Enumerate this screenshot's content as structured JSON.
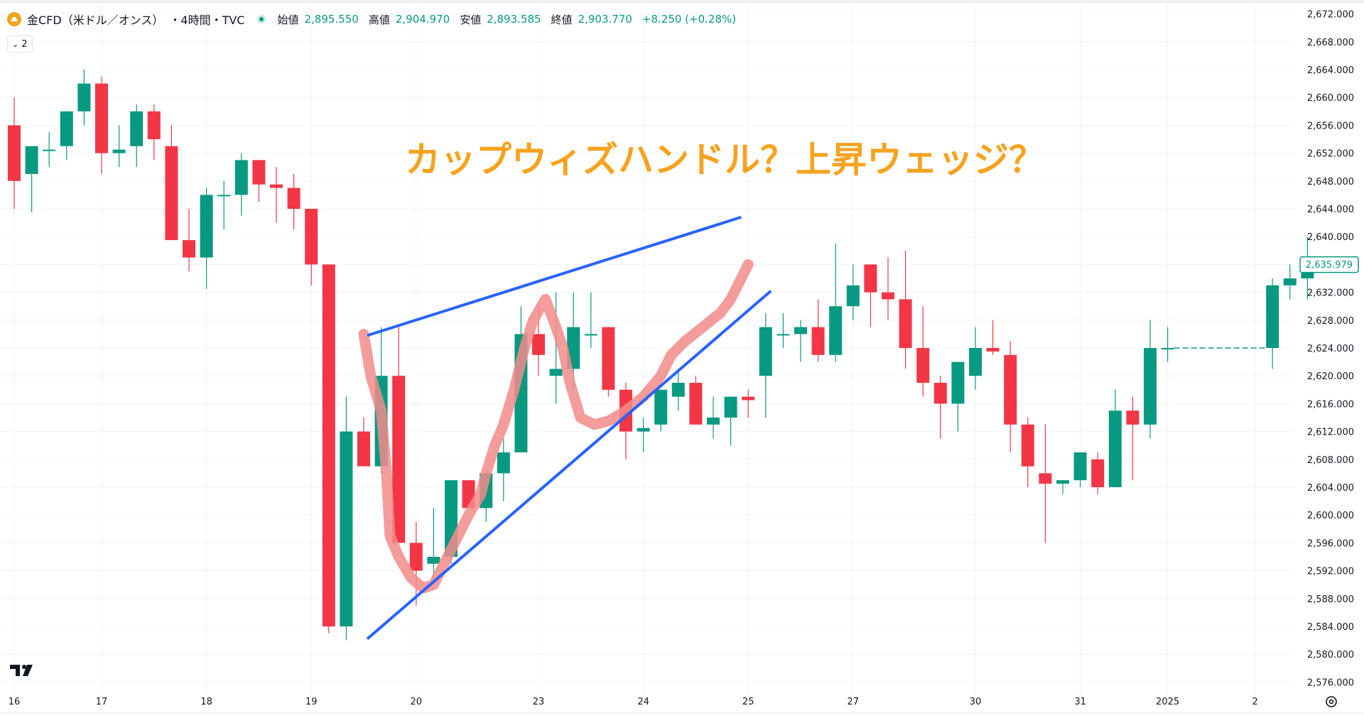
{
  "header": {
    "symbol": "金CFD（米ドル／オンス）",
    "interval": "・4時間・TVC",
    "open_label": "始値",
    "open_value": "2,895.550",
    "high_label": "高値",
    "high_value": "2,904.970",
    "low_label": "安値",
    "low_value": "2,893.585",
    "close_label": "終値",
    "close_value": "2,903.770",
    "change": "+8.250 (+0.28%)",
    "indicator_count": "2"
  },
  "annotation_text": "カップウィズハンドル？上昇ウェッジ？",
  "colors": {
    "up": "#089981",
    "down": "#f23645",
    "trendline": "#2962ff",
    "highlight": "#f28b8b",
    "annotation": "#f7a21e"
  },
  "chart_data": {
    "type": "candlestick",
    "y_ticks": [
      "2,576.000",
      "2,580.000",
      "2,584.000",
      "2,588.000",
      "2,592.000",
      "2,596.000",
      "2,600.000",
      "2,604.000",
      "2,608.000",
      "2,612.000",
      "2,616.000",
      "2,620.000",
      "2,624.000",
      "2,628.000",
      "2,632.000",
      "2,636.000",
      "2,640.000",
      "2,644.000",
      "2,648.000",
      "2,652.000",
      "2,656.000",
      "2,660.000",
      "2,664.000",
      "2,668.000",
      "2,672.000"
    ],
    "ylim": [
      2574,
      2674
    ],
    "x_ticks": [
      {
        "label": "16",
        "i": 0
      },
      {
        "label": "17",
        "i": 5
      },
      {
        "label": "18",
        "i": 11
      },
      {
        "label": "19",
        "i": 17
      },
      {
        "label": "20",
        "i": 23
      },
      {
        "label": "23",
        "i": 30
      },
      {
        "label": "24",
        "i": 36
      },
      {
        "label": "25",
        "i": 42
      },
      {
        "label": "27",
        "i": 48
      },
      {
        "label": "30",
        "i": 55
      },
      {
        "label": "31",
        "i": 61
      },
      {
        "label": "2025",
        "i": 66
      },
      {
        "label": "2",
        "i": 71
      }
    ],
    "current_price": "2,635.979",
    "current_value": 2635.979,
    "ohlc": [
      [
        2656,
        2660,
        2644,
        2648
      ],
      [
        2649,
        2653,
        2643.5,
        2653
      ],
      [
        2652.5,
        2655,
        2650,
        2652.5
      ],
      [
        2653,
        2657,
        2651,
        2658
      ],
      [
        2658,
        2664,
        2656,
        2662
      ],
      [
        2662,
        2663,
        2649,
        2652
      ],
      [
        2652,
        2656,
        2650,
        2652.5
      ],
      [
        2653,
        2659,
        2650,
        2658
      ],
      [
        2658,
        2659,
        2651,
        2654
      ],
      [
        2653,
        2656,
        2640,
        2639.5
      ],
      [
        2639.5,
        2644,
        2635,
        2637
      ],
      [
        2637,
        2647,
        2632.5,
        2646
      ],
      [
        2646,
        2648,
        2641,
        2646
      ],
      [
        2646,
        2652,
        2643,
        2651
      ],
      [
        2651,
        2651,
        2645,
        2647.5
      ],
      [
        2647.5,
        2650,
        2642,
        2647
      ],
      [
        2647,
        2649,
        2641,
        2644
      ],
      [
        2644,
        2644,
        2633,
        2636
      ],
      [
        2636,
        2636,
        2583,
        2584
      ],
      [
        2584,
        2617,
        2582,
        2612
      ],
      [
        2612,
        2614,
        2607,
        2607
      ],
      [
        2607,
        2627,
        2606,
        2620
      ],
      [
        2620,
        2627,
        2596,
        2596
      ],
      [
        2596,
        2599,
        2587,
        2592
      ],
      [
        2593,
        2601,
        2590,
        2594
      ],
      [
        2594,
        2605,
        2593,
        2605
      ],
      [
        2605,
        2605,
        2601,
        2601
      ],
      [
        2601,
        2606,
        2599,
        2606
      ],
      [
        2606,
        2611,
        2602,
        2609
      ],
      [
        2609,
        2630,
        2609,
        2626
      ],
      [
        2626,
        2630,
        2620,
        2623
      ],
      [
        2620,
        2632,
        2616,
        2621
      ],
      [
        2621,
        2632,
        2618,
        2627
      ],
      [
        2626,
        2632,
        2624,
        2626
      ],
      [
        2627,
        2627,
        2617,
        2618
      ],
      [
        2618,
        2619,
        2608,
        2612
      ],
      [
        2612,
        2614,
        2609,
        2612.5
      ],
      [
        2613,
        2617,
        2612,
        2618
      ],
      [
        2617,
        2621,
        2615,
        2619
      ],
      [
        2619,
        2620,
        2613,
        2613
      ],
      [
        2613,
        2617,
        2611,
        2614
      ],
      [
        2614,
        2617,
        2610,
        2617
      ],
      [
        2617,
        2618,
        2614,
        2616.5
      ],
      [
        2620,
        2629,
        2614,
        2627
      ],
      [
        2626,
        2629,
        2624,
        2626
      ],
      [
        2626,
        2628,
        2622,
        2627
      ],
      [
        2627,
        2631,
        2622,
        2623
      ],
      [
        2623,
        2639,
        2622,
        2630
      ],
      [
        2630,
        2636,
        2628,
        2633
      ],
      [
        2636,
        2636,
        2627,
        2632
      ],
      [
        2632,
        2637,
        2628,
        2631
      ],
      [
        2631,
        2638,
        2621,
        2624
      ],
      [
        2624,
        2630,
        2617,
        2619
      ],
      [
        2619,
        2620,
        2611,
        2616
      ],
      [
        2616,
        2622,
        2612,
        2622
      ],
      [
        2620,
        2627,
        2618,
        2624
      ],
      [
        2624,
        2628,
        2623,
        2623.5
      ],
      [
        2623,
        2625,
        2609,
        2613
      ],
      [
        2613,
        2614,
        2604,
        2607
      ],
      [
        2606,
        2613,
        2596,
        2604.5
      ],
      [
        2604.5,
        2605,
        2603,
        2605
      ],
      [
        2605,
        2609,
        2604,
        2609
      ],
      [
        2608,
        2609,
        2603,
        2604
      ],
      [
        2604,
        2618,
        2604,
        2615
      ],
      [
        2615,
        2617,
        2605,
        2613
      ],
      [
        2613,
        2628,
        2611,
        2624
      ],
      [
        2624,
        2627,
        2622,
        2624
      ],
      null,
      null,
      null,
      null,
      null,
      [
        2624,
        2634,
        2621,
        2633
      ],
      [
        2633,
        2636,
        2631,
        2634
      ],
      [
        2634,
        2640,
        2631,
        2636
      ]
    ]
  }
}
